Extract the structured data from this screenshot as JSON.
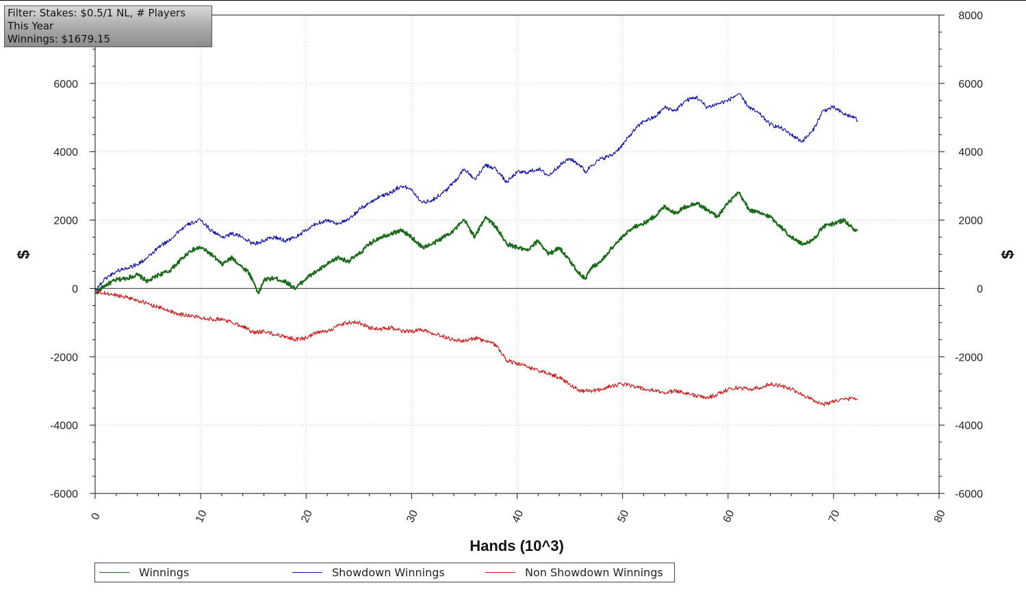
{
  "filter_box": {
    "line1": "Filter: Stakes: $0.5/1 NL, # Players",
    "line2": "This Year",
    "line3": "Winnings: $1679.15"
  },
  "chart_data": {
    "type": "line",
    "title": "",
    "xlabel": "Hands (10^3)",
    "ylabel": "$",
    "ylabel_right": "$",
    "xlim": [
      0,
      80
    ],
    "ylim": [
      -6000,
      8000
    ],
    "x_ticks": [
      0,
      10,
      20,
      30,
      40,
      50,
      60,
      70,
      80
    ],
    "y_ticks": [
      -6000,
      -4000,
      -2000,
      0,
      2000,
      4000,
      6000
    ],
    "y_ticks_right": [
      -6000,
      -4000,
      -2000,
      0,
      2000,
      4000,
      6000,
      8000
    ],
    "grid": true,
    "legend_position": "bottom",
    "series": [
      {
        "name": "Winnings",
        "color": "#1a6b1a",
        "x": [
          0,
          1,
          2,
          3,
          4,
          5,
          6,
          7,
          8,
          9,
          10,
          11,
          12,
          13,
          14,
          14.5,
          15,
          15.5,
          16,
          17,
          18,
          19,
          20,
          21,
          22,
          23,
          24,
          25,
          26,
          27,
          28,
          29,
          30,
          31,
          32,
          33,
          34,
          35,
          36,
          37,
          38,
          39,
          40,
          41,
          42,
          43,
          44,
          45,
          46,
          46.5,
          47,
          48,
          49,
          50,
          51,
          52,
          53,
          54,
          55,
          56,
          57,
          58,
          59,
          60,
          61,
          62,
          63,
          64,
          65,
          66,
          67,
          68,
          69,
          70,
          71,
          72,
          72.3
        ],
        "y": [
          -150,
          100,
          250,
          300,
          400,
          200,
          400,
          500,
          800,
          1100,
          1200,
          1000,
          700,
          900,
          600,
          500,
          200,
          -150,
          250,
          300,
          200,
          0,
          300,
          500,
          700,
          900,
          800,
          1000,
          1300,
          1500,
          1600,
          1700,
          1500,
          1200,
          1300,
          1500,
          1700,
          2000,
          1500,
          2100,
          1800,
          1300,
          1200,
          1100,
          1400,
          1000,
          1200,
          800,
          400,
          300,
          600,
          800,
          1200,
          1500,
          1800,
          1900,
          2100,
          2400,
          2200,
          2400,
          2500,
          2300,
          2100,
          2500,
          2800,
          2300,
          2200,
          2100,
          1800,
          1500,
          1300,
          1400,
          1800,
          1900,
          2000,
          1700,
          1700
        ]
      },
      {
        "name": "Showdown Winnings",
        "color": "#0a0aa8",
        "x": [
          0,
          1,
          2,
          3,
          4,
          5,
          6,
          7,
          8,
          9,
          10,
          11,
          12,
          13,
          14,
          15,
          16,
          17,
          18,
          19,
          20,
          21,
          22,
          23,
          24,
          25,
          26,
          27,
          28,
          29,
          30,
          31,
          32,
          33,
          34,
          35,
          36,
          37,
          38,
          39,
          40,
          41,
          42,
          43,
          44,
          45,
          46,
          46.5,
          47,
          48,
          49,
          50,
          51,
          52,
          53,
          54,
          55,
          56,
          57,
          58,
          59,
          60,
          61,
          62,
          63,
          64,
          65,
          66,
          67,
          68,
          69,
          70,
          71,
          72,
          72.3
        ],
        "y": [
          -50,
          300,
          500,
          600,
          700,
          900,
          1200,
          1400,
          1700,
          1900,
          2000,
          1700,
          1500,
          1600,
          1500,
          1300,
          1400,
          1500,
          1400,
          1500,
          1700,
          1900,
          2000,
          1900,
          2000,
          2300,
          2500,
          2700,
          2800,
          3000,
          2900,
          2500,
          2600,
          2800,
          3100,
          3500,
          3200,
          3600,
          3500,
          3100,
          3400,
          3400,
          3500,
          3300,
          3600,
          3800,
          3600,
          3400,
          3600,
          3800,
          3900,
          4200,
          4600,
          4900,
          5000,
          5300,
          5200,
          5500,
          5600,
          5300,
          5400,
          5500,
          5700,
          5300,
          5100,
          4800,
          4700,
          4500,
          4300,
          4600,
          5200,
          5300,
          5100,
          5000,
          4900
        ]
      },
      {
        "name": "Non Showdown Winnings",
        "color": "#cc1111",
        "x": [
          0,
          1,
          2,
          3,
          4,
          5,
          6,
          7,
          8,
          9,
          10,
          11,
          12,
          13,
          14,
          15,
          16,
          17,
          18,
          19,
          20,
          21,
          22,
          23,
          24,
          25,
          26,
          27,
          28,
          29,
          30,
          31,
          32,
          33,
          34,
          35,
          36,
          37,
          38,
          39,
          40,
          41,
          42,
          43,
          44,
          45,
          46,
          47,
          48,
          49,
          50,
          51,
          52,
          53,
          54,
          55,
          56,
          57,
          58,
          59,
          60,
          61,
          62,
          63,
          64,
          65,
          66,
          67,
          68,
          69,
          70,
          71,
          72,
          72.3
        ],
        "y": [
          -100,
          -150,
          -200,
          -250,
          -350,
          -450,
          -550,
          -650,
          -750,
          -800,
          -850,
          -900,
          -900,
          -1000,
          -1100,
          -1300,
          -1250,
          -1350,
          -1400,
          -1500,
          -1450,
          -1300,
          -1250,
          -1100,
          -1000,
          -1000,
          -1150,
          -1200,
          -1150,
          -1250,
          -1250,
          -1200,
          -1300,
          -1400,
          -1500,
          -1550,
          -1450,
          -1550,
          -1650,
          -2100,
          -2200,
          -2300,
          -2400,
          -2500,
          -2600,
          -2800,
          -3000,
          -3000,
          -2950,
          -2850,
          -2800,
          -2850,
          -2950,
          -3000,
          -3050,
          -3000,
          -3050,
          -3150,
          -3200,
          -3100,
          -2950,
          -2900,
          -2950,
          -2900,
          -2800,
          -2850,
          -2950,
          -3100,
          -3250,
          -3400,
          -3300,
          -3250,
          -3200,
          -3250
        ]
      }
    ]
  }
}
